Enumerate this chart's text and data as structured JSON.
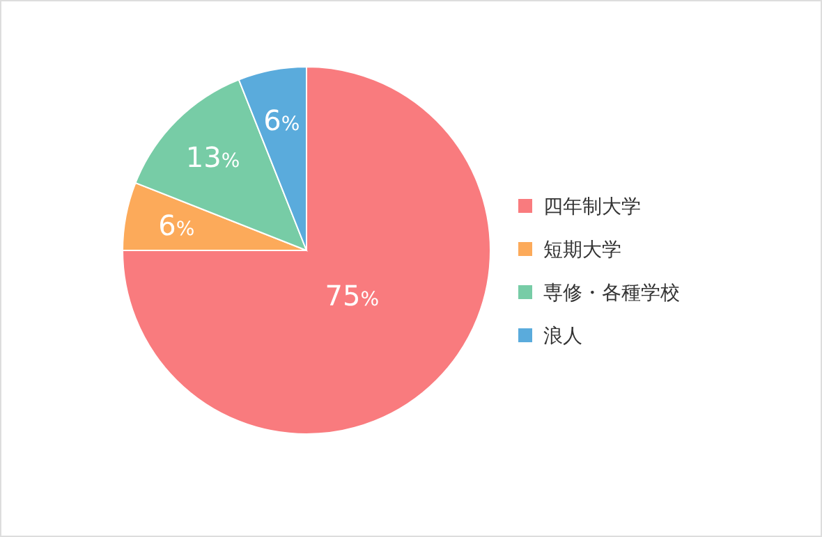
{
  "chart_data": {
    "type": "pie",
    "categories": [
      "四年制大学",
      "短期大学",
      "専修・各種学校",
      "浪人"
    ],
    "values": [
      75,
      6,
      13,
      6
    ],
    "colors": [
      "#f97b7e",
      "#fcaa5a",
      "#77cca6",
      "#5aabdc"
    ],
    "value_labels": [
      "75%",
      "6%",
      "13%",
      "6%"
    ],
    "legend": "right"
  }
}
